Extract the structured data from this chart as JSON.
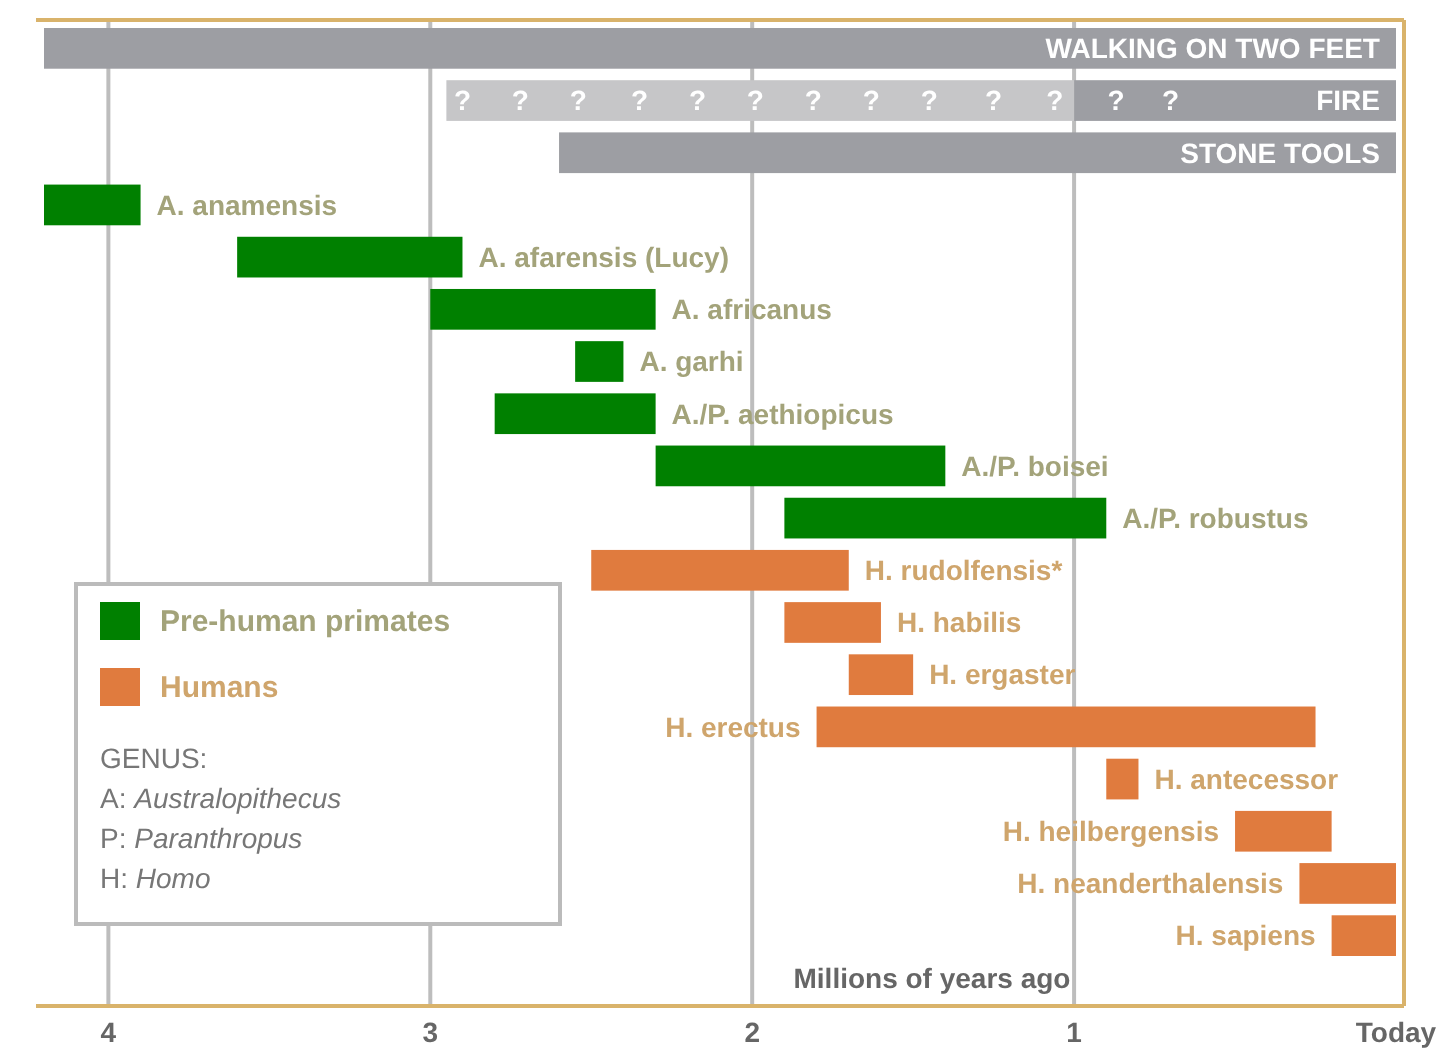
{
  "chart_data": {
    "type": "bar",
    "orientation": "horizontal",
    "xlabel": "Millions of years ago",
    "categories": [
      "WALKING ON TWO FEET",
      "FIRE",
      "STONE TOOLS",
      "A. anamensis",
      "A. afarensis (Lucy)",
      "A. africanus",
      "A. garhi",
      "A./P. aethiopicus",
      "A./P. boisei",
      "A./P. robustus",
      "H. rudolfensis*",
      "H. habilis",
      "H. ergaster",
      "H. erectus",
      "H. antecessor",
      "H. heilbergensis",
      "H. neanderthalensis",
      "H. sapiens"
    ],
    "series": [
      {
        "color": "#9d9ea3",
        "base": [
          0,
          0,
          0,
          null,
          null,
          null,
          null,
          null,
          null,
          null,
          null,
          null,
          null,
          null,
          null,
          null,
          null,
          null
        ],
        "values": [
          4.2,
          1.0,
          2.6,
          null,
          null,
          null,
          null,
          null,
          null,
          null,
          null,
          null,
          null,
          null,
          null,
          null,
          null,
          null
        ]
      },
      {
        "color": "#c6c6c8",
        "base": [
          null,
          1.0,
          null,
          null,
          null,
          null,
          null,
          null,
          null,
          null,
          null,
          null,
          null,
          null,
          null,
          null,
          null,
          null
        ],
        "values": [
          null,
          1.95,
          null,
          null,
          null,
          null,
          null,
          null,
          null,
          null,
          null,
          null,
          null,
          null,
          null,
          null,
          null,
          null
        ]
      },
      {
        "name": "Pre-human primates",
        "color": "#008000",
        "base": [
          null,
          null,
          null,
          3.9,
          2.9,
          2.3,
          2.4,
          2.3,
          1.4,
          0.9,
          null,
          null,
          null,
          null,
          null,
          null,
          null,
          null
        ],
        "values": [
          null,
          null,
          null,
          0.3,
          0.7,
          0.7,
          0.15,
          0.5,
          0.9,
          1.0,
          null,
          null,
          null,
          null,
          null,
          null,
          null,
          null
        ]
      },
      {
        "name": "Humans",
        "color": "#e07b3e",
        "base": [
          null,
          null,
          null,
          null,
          null,
          null,
          null,
          null,
          null,
          null,
          1.7,
          1.6,
          1.5,
          0.25,
          0.8,
          0.2,
          0,
          0
        ],
        "values": [
          null,
          null,
          null,
          null,
          null,
          null,
          null,
          null,
          null,
          null,
          0.8,
          0.3,
          0.2,
          1.55,
          0.1,
          0.3,
          0.3,
          0.2
        ]
      }
    ],
    "xlim": [
      4.2,
      0
    ],
    "xticks": [
      4,
      3,
      2,
      1,
      {
        "value": 0,
        "label": "Today"
      }
    ],
    "grid": "x",
    "legend": "bottom left",
    "annotations": [
      "GENUS:",
      "A: Australopithecus",
      "P: Paranthropus",
      "H: Homo",
      {
        "text": "?",
        "x": 2.9,
        "y": "FIRE"
      },
      {
        "text": "?",
        "x": 2.72,
        "y": "FIRE"
      },
      {
        "text": "?",
        "x": 2.54,
        "y": "FIRE"
      },
      {
        "text": "?",
        "x": 2.35,
        "y": "FIRE"
      },
      {
        "text": "?",
        "x": 2.17,
        "y": "FIRE"
      },
      {
        "text": "?",
        "x": 1.99,
        "y": "FIRE"
      },
      {
        "text": "?",
        "x": 1.81,
        "y": "FIRE"
      },
      {
        "text": "?",
        "x": 1.63,
        "y": "FIRE"
      },
      {
        "text": "?",
        "x": 1.45,
        "y": "FIRE"
      },
      {
        "text": "?",
        "x": 1.25,
        "y": "FIRE"
      },
      {
        "text": "?",
        "x": 1.06,
        "y": "FIRE"
      },
      {
        "text": "?",
        "x": 0.87,
        "y": "FIRE"
      },
      {
        "text": "?",
        "x": 0.7,
        "y": "FIRE"
      }
    ]
  }
}
